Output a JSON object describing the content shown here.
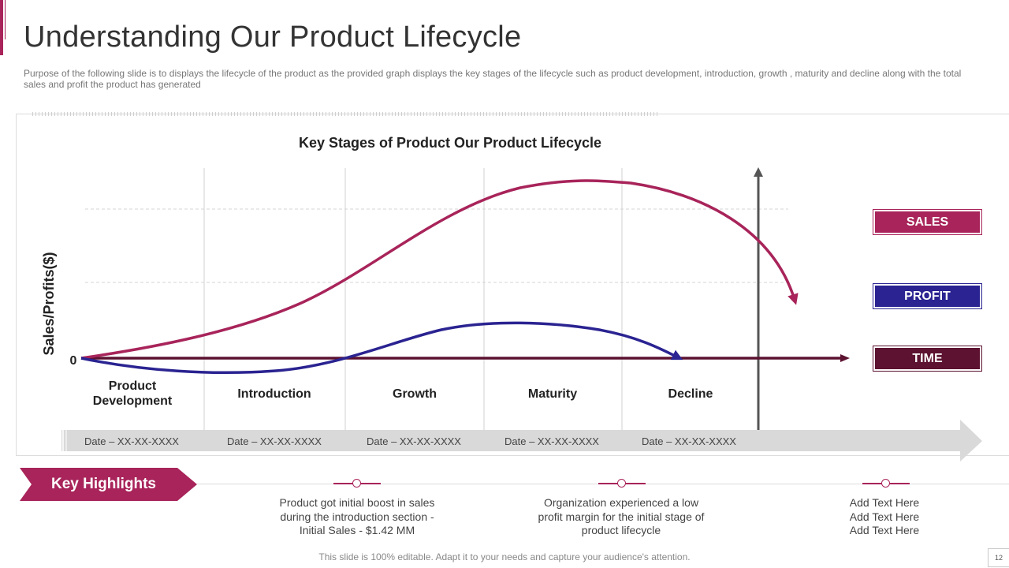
{
  "header": {
    "title": "Understanding Our Product Lifecycle",
    "subtitle": "Purpose of the following slide is to displays the lifecycle of the product as the provided graph displays the key stages of the lifecycle such as product development, introduction, growth , maturity and decline along with the total sales and profit the product has generated"
  },
  "chart": {
    "title": "Key Stages of Product Our Product Lifecycle",
    "ylabel": "Sales/Profits($)",
    "origin_label": "0",
    "stages": [
      {
        "name_line1": "Product",
        "name_line2": "Development",
        "date": "Date – XX-XX-XXXX"
      },
      {
        "name_line1": "Introduction",
        "name_line2": "",
        "date": "Date – XX-XX-XXXX"
      },
      {
        "name_line1": "Growth",
        "name_line2": "",
        "date": "Date – XX-XX-XXXX"
      },
      {
        "name_line1": "Maturity",
        "name_line2": "",
        "date": "Date – XX-XX-XXXX"
      },
      {
        "name_line1": "Decline",
        "name_line2": "",
        "date": "Date – XX-XX-XXXX"
      }
    ]
  },
  "legend": {
    "sales": "SALES",
    "profit": "PROFIT",
    "time": "TIME"
  },
  "colors": {
    "sales": "#a8245a",
    "profit": "#2a2391",
    "time": "#5c1230"
  },
  "highlights": {
    "banner": "Key Highlights",
    "items": [
      {
        "line1": "Product got initial boost in sales",
        "line2": "during the introduction section -",
        "line3": "Initial Sales - $1.42 MM"
      },
      {
        "line1": "Organization experienced a low",
        "line2": "profit margin for the initial stage of",
        "line3": "product lifecycle"
      },
      {
        "line1": "Add Text Here",
        "line2": "Add Text Here",
        "line3": "Add Text Here"
      }
    ]
  },
  "footer": {
    "note": "This slide is 100% editable. Adapt it to your needs and capture your audience's attention.",
    "page": "12"
  }
}
